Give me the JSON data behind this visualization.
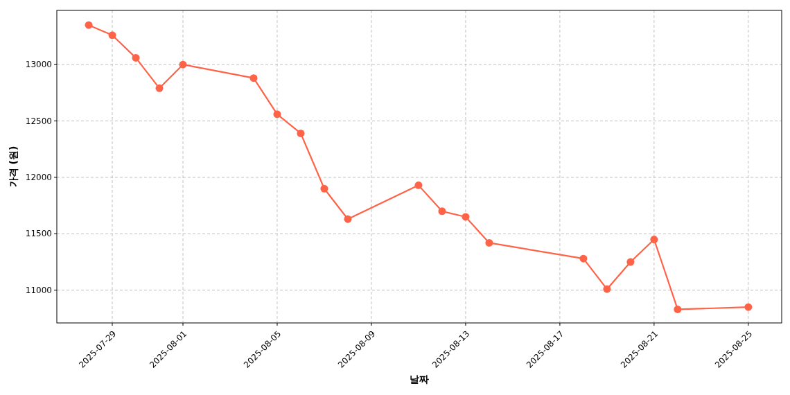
{
  "chart_data": {
    "type": "line",
    "xlabel": "날짜",
    "ylabel": "가격 (원)",
    "x": [
      "2025-07-28",
      "2025-07-29",
      "2025-07-30",
      "2025-07-31",
      "2025-08-01",
      "2025-08-04",
      "2025-08-05",
      "2025-08-06",
      "2025-08-07",
      "2025-08-08",
      "2025-08-11",
      "2025-08-12",
      "2025-08-13",
      "2025-08-14",
      "2025-08-18",
      "2025-08-19",
      "2025-08-20",
      "2025-08-21",
      "2025-08-22",
      "2025-08-25"
    ],
    "series": [
      {
        "color": "#ff6347",
        "values": [
          13350,
          13260,
          13060,
          12790,
          13000,
          12880,
          12560,
          12390,
          11900,
          11630,
          11930,
          11700,
          11650,
          11420,
          11280,
          11010,
          11250,
          11450,
          10830,
          10850
        ]
      }
    ],
    "xlim": [
      "2025-07-26T15:30",
      "2025-08-26T10:00"
    ],
    "ylim": [
      10710,
      13480
    ],
    "xticks": [
      "2025-07-29",
      "2025-08-01",
      "2025-08-05",
      "2025-08-09",
      "2025-08-13",
      "2025-08-17",
      "2025-08-21",
      "2025-08-25"
    ],
    "yticks": [
      11000,
      11500,
      12000,
      12500,
      13000
    ],
    "grid": true,
    "marker": "circle",
    "line_style": "solid"
  }
}
